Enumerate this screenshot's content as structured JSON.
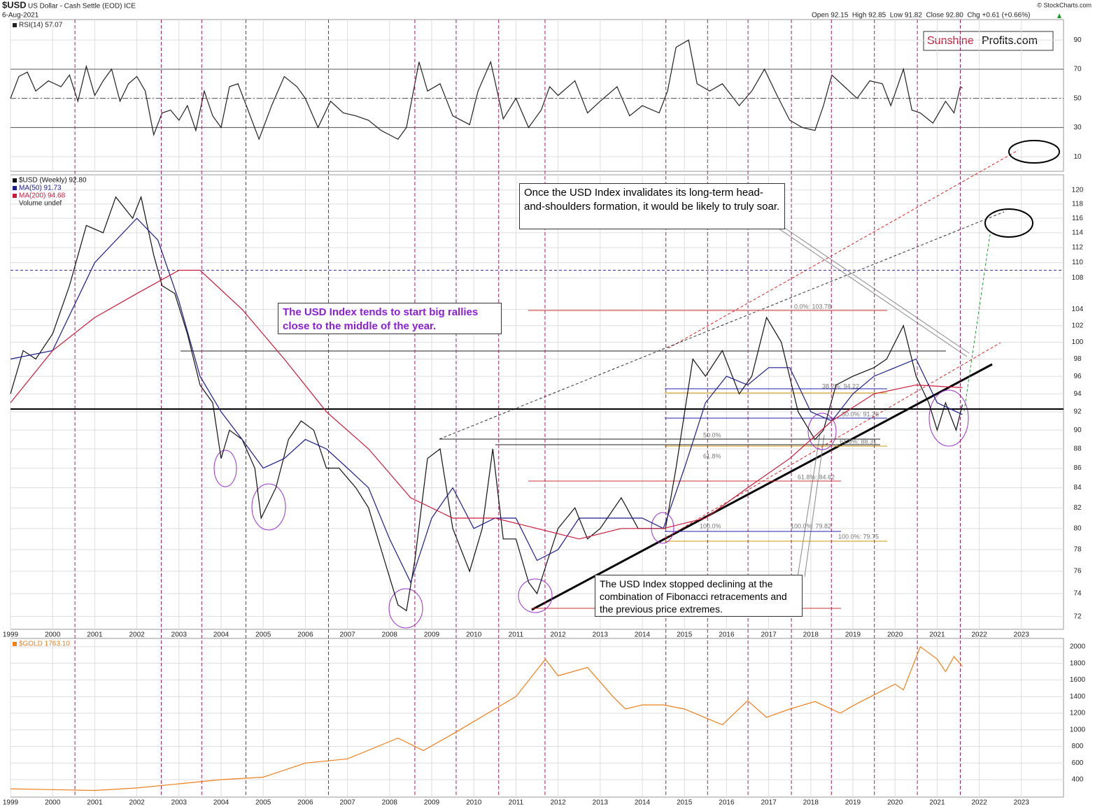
{
  "header": {
    "symbol": "$USD",
    "name": "US Dollar - Cash Settle (EOD) ICE",
    "date": "6-Aug-2021",
    "quote": "Open 92.15  High 92.85  Low 91.82  Close 92.80  Chg +0.61 (+0.66%)",
    "source": "© StockCharts.com",
    "logo_red": "Sunshine",
    "logo_black": "Profits.com"
  },
  "chart_data": [
    {
      "type": "line",
      "ylim": [
        0,
        104
      ],
      "yticks": [
        10,
        30,
        50,
        70,
        90
      ],
      "xlim": [
        1999,
        2024
      ],
      "levels": [
        30,
        50,
        70
      ],
      "grid": true,
      "series": [
        {
          "name": "RSI(14) 57.07",
          "color": "#222222",
          "x": [
            1999.0,
            1999.2,
            1999.4,
            1999.6,
            1999.9,
            2000.2,
            2000.4,
            2000.6,
            2000.8,
            2001.0,
            2001.2,
            2001.4,
            2001.6,
            2001.8,
            2002.0,
            2002.2,
            2002.4,
            2002.6,
            2002.8,
            2003.0,
            2003.2,
            2003.4,
            2003.6,
            2003.8,
            2004.0,
            2004.2,
            2004.4,
            2004.6,
            2004.9,
            2005.2,
            2005.5,
            2005.8,
            2006.0,
            2006.3,
            2006.6,
            2006.9,
            2007.2,
            2007.5,
            2007.8,
            2008.2,
            2008.4,
            2008.7,
            2008.9,
            2009.2,
            2009.5,
            2009.9,
            2010.1,
            2010.4,
            2010.7,
            2011.0,
            2011.3,
            2011.6,
            2011.8,
            2012.0,
            2012.4,
            2012.7,
            2013.0,
            2013.4,
            2013.7,
            2014.0,
            2014.4,
            2014.6,
            2014.8,
            2015.1,
            2015.3,
            2015.6,
            2015.9,
            2016.3,
            2016.6,
            2016.9,
            2017.2,
            2017.5,
            2017.8,
            2018.1,
            2018.3,
            2018.5,
            2018.8,
            2019.1,
            2019.4,
            2019.7,
            2019.9,
            2020.2,
            2020.4,
            2020.6,
            2020.9,
            2021.0,
            2021.2,
            2021.4,
            2021.55,
            2021.6
          ],
          "values": [
            50,
            65,
            68,
            55,
            62,
            58,
            66,
            48,
            72,
            52,
            62,
            70,
            48,
            60,
            65,
            55,
            25,
            40,
            42,
            35,
            45,
            28,
            55,
            38,
            30,
            58,
            60,
            45,
            22,
            45,
            65,
            58,
            50,
            30,
            48,
            40,
            38,
            35,
            28,
            22,
            30,
            75,
            55,
            60,
            38,
            32,
            55,
            75,
            36,
            50,
            30,
            42,
            58,
            52,
            62,
            40,
            48,
            58,
            38,
            45,
            40,
            55,
            85,
            90,
            60,
            55,
            60,
            45,
            55,
            70,
            52,
            35,
            30,
            28,
            45,
            66,
            58,
            50,
            62,
            60,
            45,
            70,
            42,
            40,
            33,
            38,
            48,
            40,
            58,
            57
          ]
        }
      ]
    },
    {
      "type": "line",
      "log": true,
      "ylim": [
        70.9,
        122.2
      ],
      "yticks": [
        72,
        74,
        76,
        78,
        80,
        82,
        84,
        86,
        88,
        90,
        92,
        94,
        96,
        98,
        100,
        102,
        104,
        108,
        110,
        112,
        114,
        116,
        118,
        120
      ],
      "xlim": [
        1999,
        2024
      ],
      "xticks": [
        1999,
        2000,
        2001,
        2002,
        2003,
        2004,
        2005,
        2006,
        2007,
        2008,
        2009,
        2010,
        2011,
        2012,
        2013,
        2014,
        2015,
        2016,
        2017,
        2018,
        2019,
        2020,
        2021,
        2022,
        2023
      ],
      "grid": true,
      "event_lines": [
        2000.53,
        2002.58,
        2003.54,
        2004.59,
        2006.55,
        2008.6,
        2009.58,
        2010.59,
        2011.69,
        2014.56,
        2015.55,
        2016.51,
        2017.54,
        2018.49,
        2019.51,
        2020.53,
        2021.55
      ],
      "hlines": [
        {
          "value": 109,
          "color": "#4b2c9f",
          "style": "dashed"
        },
        {
          "value": 92.3,
          "color": "#000000",
          "style": "solid"
        }
      ],
      "legend_extra": "Volume undef",
      "fib_labels": [
        "0.0%: 103.78",
        "38.2%: 94.22",
        "50.0%: 91.26",
        "61.8%: 88.31",
        "61.8%: 84.62",
        "100.0%: 79.82",
        "100.0%: 79.75",
        "50.0%",
        "61.8%",
        "100.0%"
      ],
      "annotations": [
        "Once the USD Index invalidates its long-term head-and-shoulders formation, it would be likely to truly soar.",
        "The USD Index tends to start big rallies close to the middle of the year.",
        "The USD Index stopped declining at the combination of Fibonacci retracements and the previous price extremes."
      ],
      "series": [
        {
          "name": "$USD (Weekly) 92.80",
          "color": "#111111",
          "x": [
            1999.0,
            1999.3,
            1999.6,
            2000.0,
            2000.4,
            2000.8,
            2001.2,
            2001.5,
            2001.9,
            2002.1,
            2002.4,
            2002.6,
            2002.9,
            2003.2,
            2003.5,
            2003.8,
            2004.0,
            2004.2,
            2004.5,
            2004.8,
            2004.95,
            2005.3,
            2005.6,
            2005.9,
            2006.2,
            2006.5,
            2006.8,
            2007.2,
            2007.5,
            2007.8,
            2008.2,
            2008.4,
            2008.6,
            2008.9,
            2009.2,
            2009.5,
            2009.9,
            2010.2,
            2010.45,
            2010.7,
            2011.0,
            2011.3,
            2011.5,
            2011.75,
            2012.0,
            2012.4,
            2012.7,
            2013.0,
            2013.5,
            2013.9,
            2014.3,
            2014.55,
            2014.8,
            2015.2,
            2015.5,
            2015.9,
            2016.3,
            2016.6,
            2016.95,
            2017.3,
            2017.7,
            2018.1,
            2018.3,
            2018.6,
            2019.0,
            2019.5,
            2019.8,
            2020.2,
            2020.5,
            2020.8,
            2021.0,
            2021.2,
            2021.45,
            2021.6
          ],
          "values": [
            94,
            99,
            98,
            101,
            107,
            115,
            114,
            119,
            116,
            119,
            111,
            107,
            106,
            101,
            95,
            93,
            87,
            90,
            89,
            86,
            81,
            84,
            89,
            91,
            90,
            86,
            86,
            84,
            82,
            78,
            73,
            72.5,
            77,
            87,
            88,
            80,
            76,
            80,
            88,
            79,
            79,
            75,
            74,
            77,
            80,
            82,
            79,
            80,
            83,
            80,
            80,
            80,
            86,
            98,
            96,
            99,
            94,
            96,
            103,
            100,
            92,
            89,
            90,
            95,
            96,
            97,
            98,
            102,
            96,
            93,
            90,
            93,
            90,
            92.8
          ]
        },
        {
          "name": "MA(50) 91.73",
          "color": "#1c1c8c",
          "x": [
            1999.0,
            2000.0,
            2001.0,
            2002.0,
            2002.5,
            2003.0,
            2003.5,
            2004.0,
            2004.5,
            2005.0,
            2005.5,
            2006.0,
            2006.5,
            2007.0,
            2007.5,
            2008.0,
            2008.5,
            2009.0,
            2009.5,
            2010.0,
            2010.5,
            2011.0,
            2011.5,
            2012.0,
            2012.5,
            2013.0,
            2013.5,
            2014.0,
            2014.5,
            2015.0,
            2015.5,
            2016.0,
            2016.5,
            2017.0,
            2017.5,
            2018.0,
            2018.5,
            2019.0,
            2019.5,
            2020.0,
            2020.5,
            2021.0,
            2021.6
          ],
          "values": [
            98,
            99,
            110,
            116,
            113,
            105,
            96,
            92,
            89,
            86,
            87,
            89,
            88,
            86,
            84,
            79,
            75,
            81,
            84,
            80,
            81,
            81,
            77,
            78,
            81,
            81,
            81,
            81,
            80,
            86,
            93,
            96,
            95,
            97,
            97,
            92,
            91,
            94,
            96,
            97,
            98,
            93,
            91.7
          ]
        },
        {
          "name": "MA(200) 94.68",
          "color": "#cc1a3a",
          "x": [
            1999.0,
            2000.0,
            2001.0,
            2002.0,
            2003.0,
            2003.5,
            2004.5,
            2005.5,
            2006.5,
            2007.5,
            2008.5,
            2009.5,
            2010.5,
            2011.5,
            2012.5,
            2013.5,
            2014.5,
            2015.5,
            2016.5,
            2017.5,
            2018.5,
            2019.5,
            2020.5,
            2021.6
          ],
          "values": [
            93,
            99,
            103,
            106,
            109,
            109,
            104,
            98,
            92,
            88,
            83,
            81,
            81,
            80,
            79,
            80,
            80,
            81,
            84,
            87,
            91,
            94,
            95,
            94.7
          ]
        }
      ]
    },
    {
      "type": "line",
      "ylim": [
        190,
        2100
      ],
      "yticks": [
        400,
        600,
        800,
        1000,
        1200,
        1400,
        1600,
        1800,
        2000
      ],
      "xlim": [
        1999,
        2024
      ],
      "xticks": [
        1999,
        2000,
        2001,
        2002,
        2003,
        2004,
        2005,
        2006,
        2007,
        2008,
        2009,
        2010,
        2011,
        2012,
        2013,
        2014,
        2015,
        2016,
        2017,
        2018,
        2019,
        2020,
        2021,
        2022,
        2023
      ],
      "grid": true,
      "series": [
        {
          "name": "$GOLD 1763.10",
          "color": "#f07f1a",
          "x": [
            1999.0,
            2000.0,
            2001.0,
            2002.0,
            2003.0,
            2004.0,
            2005.0,
            2006.0,
            2007.0,
            2008.2,
            2008.8,
            2009.5,
            2010.0,
            2010.5,
            2011.0,
            2011.7,
            2012.0,
            2012.7,
            2013.3,
            2013.6,
            2014.0,
            2014.5,
            2015.0,
            2015.9,
            2016.5,
            2016.95,
            2017.5,
            2018.1,
            2018.7,
            2019.0,
            2019.5,
            2020.0,
            2020.2,
            2020.6,
            2021.0,
            2021.2,
            2021.4,
            2021.6
          ],
          "values": [
            290,
            280,
            270,
            300,
            350,
            400,
            430,
            600,
            650,
            900,
            750,
            950,
            1100,
            1250,
            1400,
            1850,
            1650,
            1750,
            1400,
            1250,
            1300,
            1300,
            1250,
            1060,
            1350,
            1150,
            1250,
            1340,
            1200,
            1290,
            1420,
            1550,
            1480,
            2000,
            1850,
            1700,
            1880,
            1763
          ]
        }
      ]
    }
  ]
}
